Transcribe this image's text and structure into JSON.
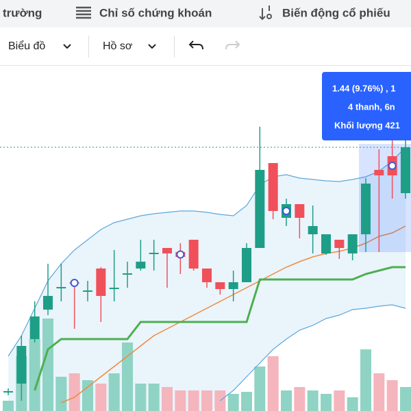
{
  "nav": {
    "items": [
      "trường",
      "Chỉ số chứng khoán",
      "Biến động cổ phiếu"
    ]
  },
  "toolbar": {
    "items": [
      "Biểu đồ",
      "Hồ sơ"
    ]
  },
  "tooltip": {
    "lines": [
      "1.44 (9.76%) , 1",
      "4 thanh, 6n",
      "Khối lượng 421"
    ]
  },
  "chart_data": {
    "type": "candlestick",
    "ylim": [
      1,
      50
    ],
    "volume_lim": [
      0,
      100
    ],
    "up_color": "#1e9e86",
    "down_color": "#f0505a",
    "volume_up_color": "#8fd3c4",
    "volume_down_color": "#f4b5bd",
    "candles": [
      {
        "open": 2.8,
        "high": 3.3,
        "low": 2.3,
        "close": 2.9,
        "volume": 5
      },
      {
        "open": 4.0,
        "high": 11,
        "low": 1.5,
        "close": 9.5,
        "volume": 70
      },
      {
        "open": 10.5,
        "high": 16,
        "low": 10,
        "close": 13.8,
        "volume": 95
      },
      {
        "open": 14.8,
        "high": 21.5,
        "low": 14,
        "close": 16.8,
        "volume": 125
      },
      {
        "open": 18,
        "high": 21.5,
        "low": 16,
        "close": 18.1,
        "volume": 40
      },
      {
        "open": 18.8,
        "high": 19,
        "low": 12,
        "close": 18.6,
        "volume": 45,
        "marker": true
      },
      {
        "open": 17.5,
        "high": 19,
        "low": 16,
        "close": 17.6,
        "volume": 35
      },
      {
        "open": 20.8,
        "high": 21,
        "low": 13,
        "close": 16.8,
        "volume": 30
      },
      {
        "open": 17.8,
        "high": 23.5,
        "low": 16,
        "close": 18,
        "volume": 45
      },
      {
        "open": 20,
        "high": 21.8,
        "low": 18,
        "close": 20.1,
        "volume": 90
      },
      {
        "open": 20.8,
        "high": 25,
        "low": 20.5,
        "close": 21.8,
        "volume": 30
      },
      {
        "open": 23,
        "high": 25,
        "low": 20.5,
        "close": 23.1,
        "volume": 30
      },
      {
        "open": 23.8,
        "high": 23.8,
        "low": 18,
        "close": 23,
        "volume": 25
      },
      {
        "open": 23.2,
        "high": 24.5,
        "low": 20,
        "close": 22.5,
        "volume": 20,
        "marker": true
      },
      {
        "open": 25,
        "high": 25,
        "low": 20.5,
        "close": 20.8,
        "volume": 20
      },
      {
        "open": 20.8,
        "high": 20.8,
        "low": 18,
        "close": 18.8,
        "volume": 20
      },
      {
        "open": 18.8,
        "high": 18.8,
        "low": 17,
        "close": 17.8,
        "volume": 20
      },
      {
        "open": 17.8,
        "high": 20.5,
        "low": 16,
        "close": 18.8,
        "volume": 15
      },
      {
        "open": 18.8,
        "high": 24.5,
        "low": 18.8,
        "close": 23.8,
        "volume": 18
      },
      {
        "open": 23.8,
        "high": 41.5,
        "low": 23.8,
        "close": 35.2,
        "volume": 55
      },
      {
        "open": 36.2,
        "high": 36.2,
        "low": 28,
        "close": 29.2,
        "volume": 70
      },
      {
        "open": 28.2,
        "high": 31,
        "low": 27,
        "close": 30.2,
        "volume": 20,
        "marker": true
      },
      {
        "open": 30.2,
        "high": 30.2,
        "low": 25.2,
        "close": 28.2,
        "volume": 25
      },
      {
        "open": 25.8,
        "high": 30,
        "low": 23,
        "close": 27,
        "volume": 20
      },
      {
        "open": 23,
        "high": 25.8,
        "low": 22.8,
        "close": 25.8,
        "volume": 15
      },
      {
        "open": 25,
        "high": 25,
        "low": 22.2,
        "close": 23.8,
        "volume": 20
      },
      {
        "open": 23,
        "high": 25.8,
        "low": 22,
        "close": 25.8,
        "volume": 10
      },
      {
        "open": 25.8,
        "high": 34,
        "low": 23.2,
        "close": 33.2,
        "volume": 80
      },
      {
        "open": 35.2,
        "high": 38.2,
        "low": 23.2,
        "close": 34.4,
        "volume": 45
      },
      {
        "open": 37.2,
        "high": 40.5,
        "low": 31,
        "close": 34.4,
        "volume": 35,
        "marker": true
      },
      {
        "open": 31.8,
        "high": 40.5,
        "low": 31,
        "close": 38.5,
        "volume": 25
      }
    ],
    "band": {
      "color": "#5aa8dc",
      "fill": "#eaf4fb",
      "upper": [
        8,
        11,
        15,
        19,
        21.5,
        23.5,
        25,
        26.5,
        27.5,
        28,
        28.5,
        28.8,
        29,
        29.2,
        29.2,
        29,
        28.7,
        28.5,
        30,
        33,
        34.2,
        34.5,
        34,
        33.8,
        33.6,
        33.5,
        33.8,
        34.2,
        35,
        36.5,
        38.5
      ],
      "lower": [
        null,
        null,
        null,
        null,
        null,
        null,
        null,
        null,
        null,
        null,
        null,
        null,
        null,
        null,
        null,
        null,
        1.5,
        3,
        5,
        7,
        9,
        10.5,
        11.8,
        12.5,
        13.5,
        14,
        14.8,
        15,
        15.3,
        15.5,
        15
      ]
    },
    "lines": [
      {
        "color": "#f08a3c",
        "width": 1.5,
        "values": [
          null,
          null,
          null,
          null,
          1.2,
          2,
          3.5,
          5,
          6.5,
          8,
          9.5,
          11,
          12,
          13,
          14,
          15,
          16,
          17,
          18,
          19,
          20,
          21,
          21.8,
          22.5,
          23,
          23.3,
          23.8,
          24.5,
          25.5,
          26,
          27
        ]
      },
      {
        "color": "#4caf50",
        "width": 3,
        "values": [
          null,
          null,
          3,
          9,
          10.5,
          10.5,
          10.5,
          10.5,
          10.5,
          10.5,
          13,
          13,
          13,
          13,
          13,
          13,
          13,
          13,
          13,
          19.2,
          19.2,
          19.2,
          19.2,
          19.2,
          19.2,
          19.2,
          19.2,
          20,
          20.5,
          21,
          21
        ]
      }
    ],
    "reference_line": 38.5,
    "selection": [
      27,
      30
    ]
  }
}
